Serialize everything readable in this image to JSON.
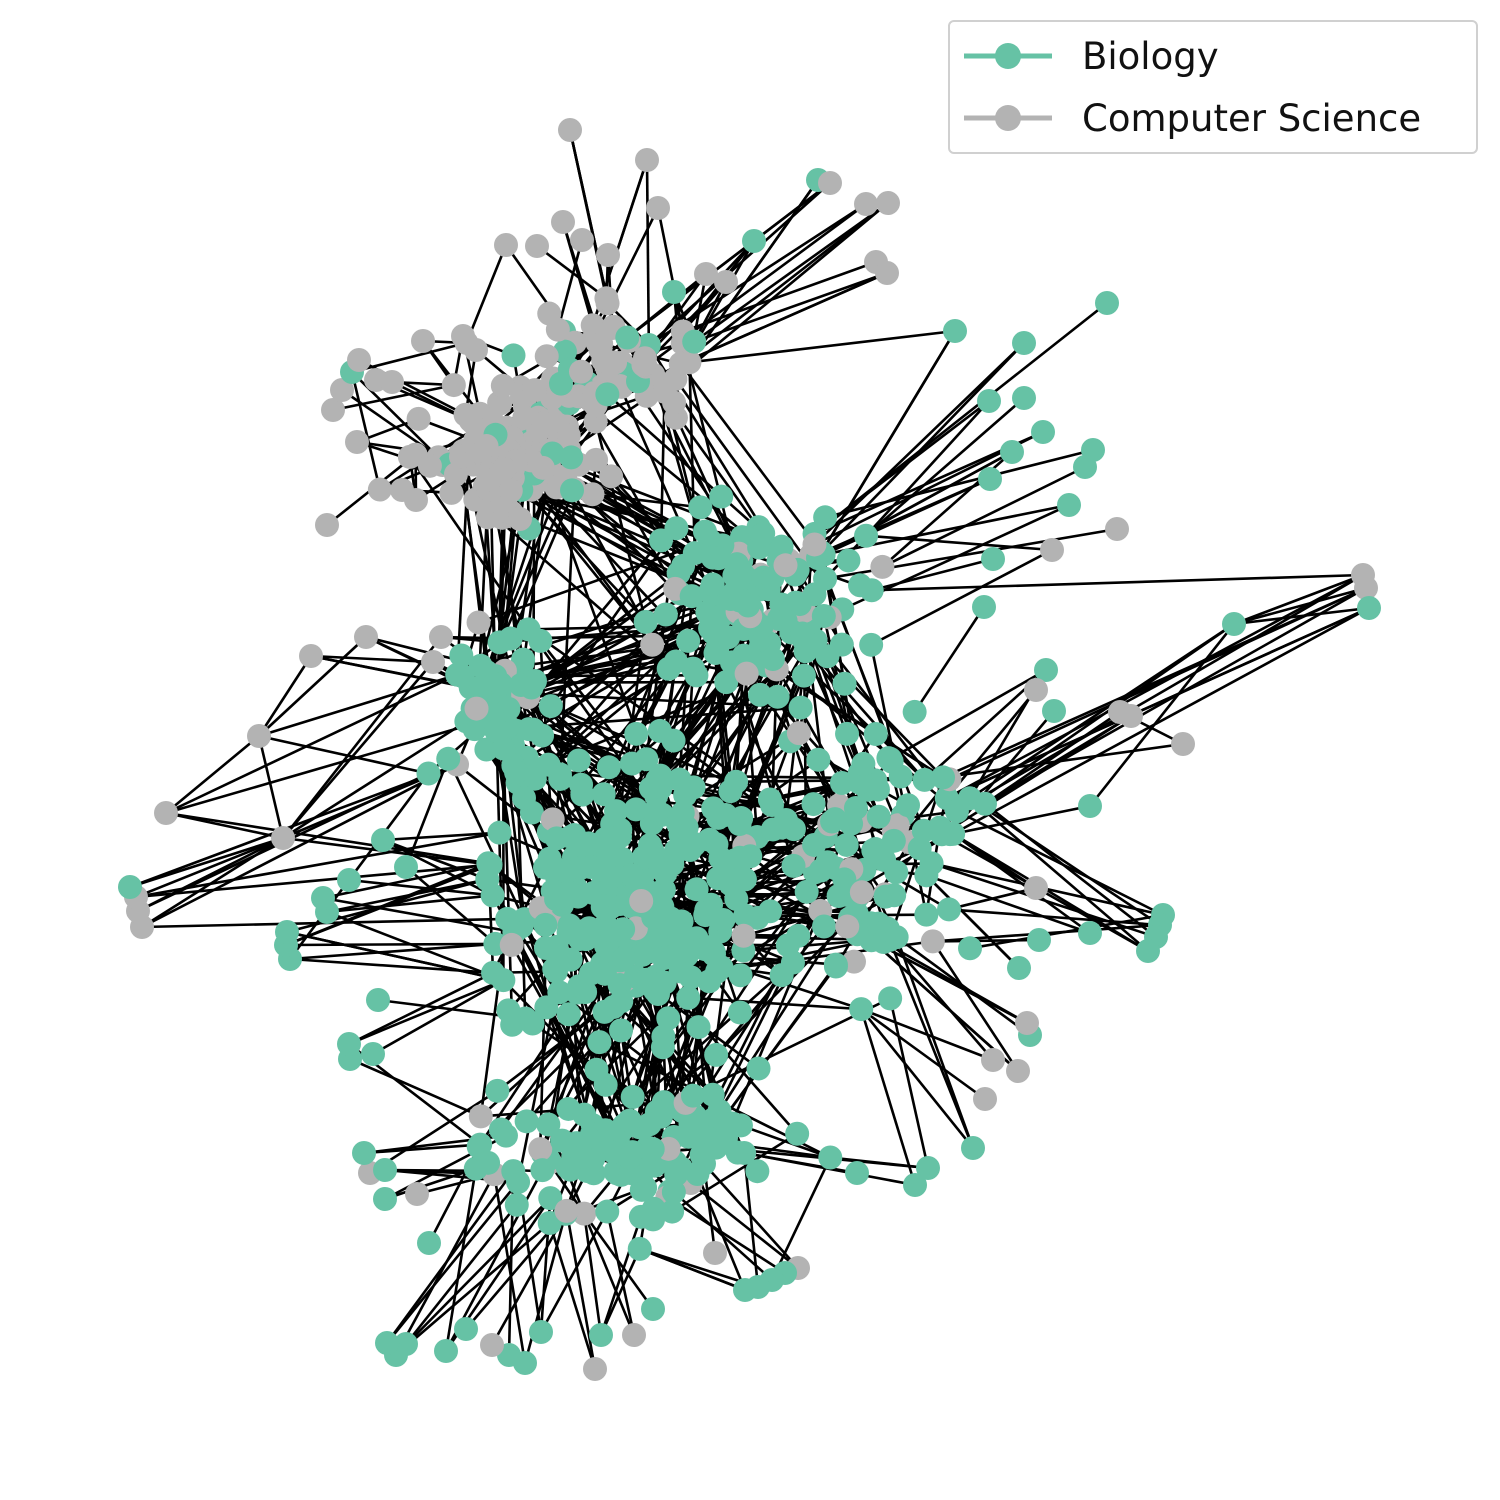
{
  "legend": {
    "items": [
      {
        "label": "Biology",
        "color": "#66c2a5"
      },
      {
        "label": "Computer Science",
        "color": "#b3b3b3"
      }
    ]
  },
  "colors": {
    "edge": "#000000",
    "background": "#ffffff"
  },
  "network": {
    "categories": [
      "Biology",
      "Computer Science"
    ]
  }
}
